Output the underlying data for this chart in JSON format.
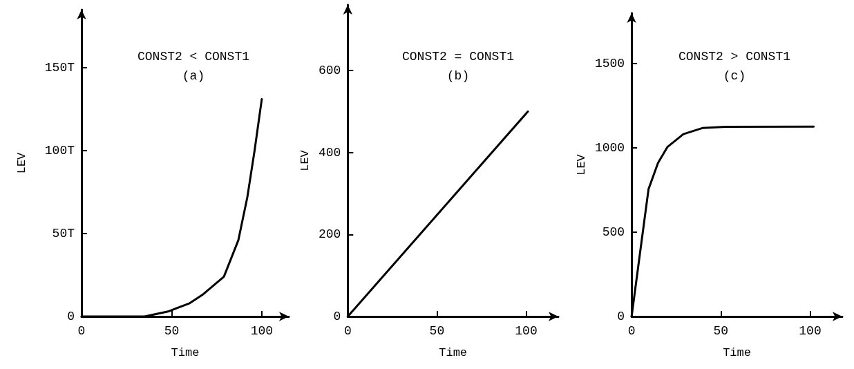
{
  "chart_data": [
    {
      "type": "line",
      "title": "CONST2 < CONST1",
      "subtitle": "(a)",
      "xlabel": "Time",
      "ylabel": "LEV",
      "color": "#000000",
      "x": [
        0,
        35,
        48,
        60,
        67,
        79,
        87,
        92,
        96,
        100
      ],
      "values": [
        0,
        0,
        3,
        8,
        13,
        24,
        46,
        72,
        100,
        131
      ],
      "xlim": [
        0,
        115
      ],
      "ylim": [
        0,
        185
      ],
      "xticks": [
        0,
        50,
        100
      ],
      "yticks": [
        0,
        {
          "value": 50,
          "label": "50T"
        },
        {
          "value": 100,
          "label": "100T"
        },
        {
          "value": 150,
          "label": "150T"
        }
      ]
    },
    {
      "type": "line",
      "title": "CONST2 = CONST1",
      "subtitle": "(b)",
      "xlabel": "Time",
      "ylabel": "LEV",
      "color": "#000000",
      "x": [
        0,
        101
      ],
      "values": [
        0,
        500
      ],
      "xlim": [
        0,
        118
      ],
      "ylim": [
        0,
        760
      ],
      "xticks": [
        0,
        50,
        100
      ],
      "yticks": [
        0,
        200,
        400,
        600
      ]
    },
    {
      "type": "line",
      "title": "CONST2 > CONST1",
      "subtitle": "(c)",
      "xlabel": "Time",
      "ylabel": "LEV",
      "color": "#000000",
      "x": [
        0,
        5.6,
        9.5,
        14.8,
        20,
        29,
        39.6,
        52.6,
        102
      ],
      "values": [
        0,
        447,
        756,
        911,
        1005,
        1082,
        1118,
        1126,
        1127
      ],
      "xlim": [
        0,
        118
      ],
      "ylim": [
        0,
        1800
      ],
      "xticks": [
        0,
        50,
        100
      ],
      "yticks": [
        0,
        500,
        1000,
        1500
      ]
    }
  ]
}
